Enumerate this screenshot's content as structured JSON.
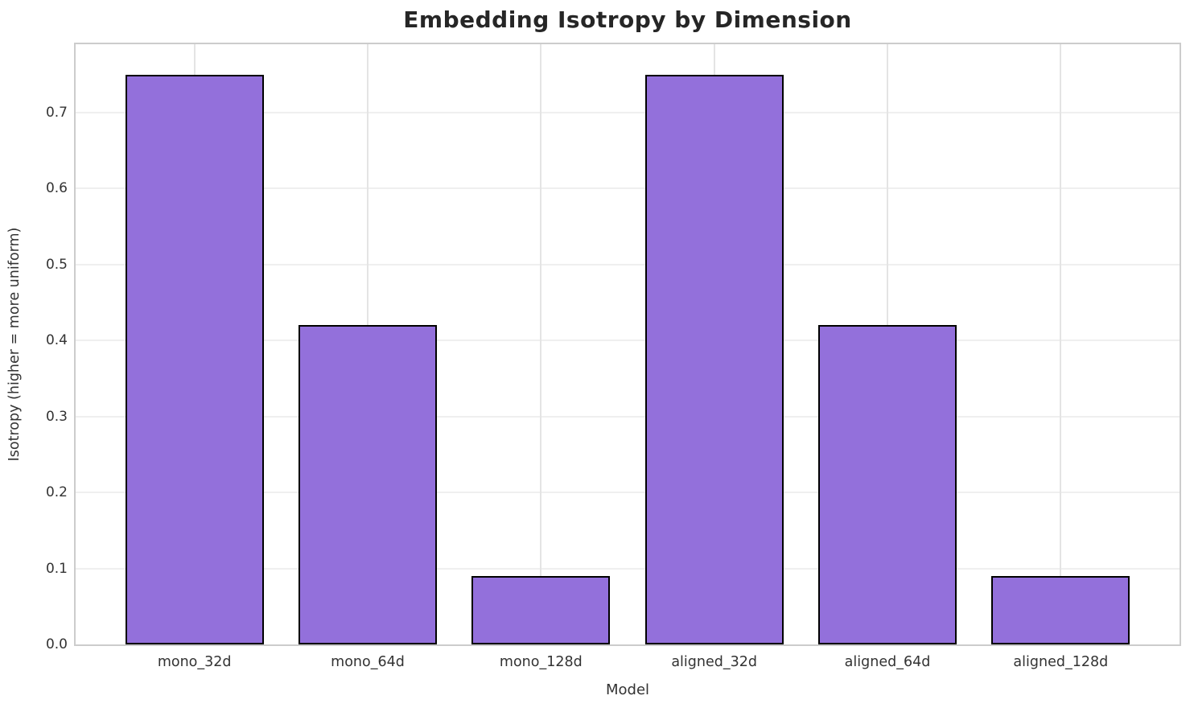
{
  "figure": {
    "background": "#ffffff"
  },
  "chart_data": {
    "type": "bar",
    "title": "Embedding Isotropy by Dimension",
    "xlabel": "Model",
    "ylabel": "Isotropy (higher = more uniform)",
    "categories": [
      "mono_32d",
      "mono_64d",
      "mono_128d",
      "aligned_32d",
      "aligned_64d",
      "aligned_128d"
    ],
    "values": [
      0.75,
      0.42,
      0.09,
      0.75,
      0.42,
      0.09
    ],
    "ylim": [
      0,
      0.79
    ],
    "yticks": [
      0.0,
      0.1,
      0.2,
      0.3,
      0.4,
      0.5,
      0.6,
      0.7
    ],
    "grid": true,
    "legend": "none",
    "colors": {
      "bar_fill": "#9370DB",
      "bar_edge": "#000000",
      "grid_h": "#efefef",
      "grid_v": "#e4e4e4",
      "spine": "#cccccc",
      "text": "#333333",
      "title_text": "#262626"
    }
  }
}
